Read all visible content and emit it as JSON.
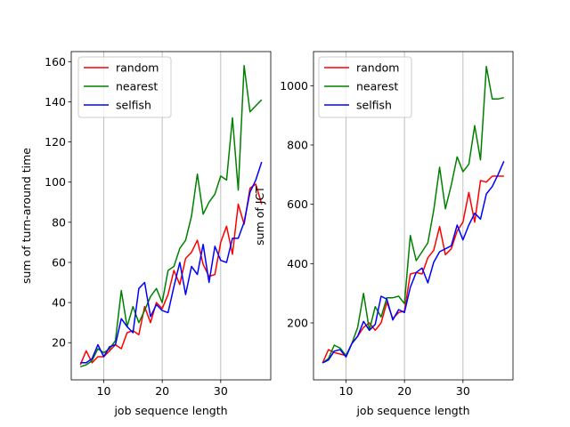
{
  "chart_data": [
    {
      "type": "line",
      "xlabel": "job sequence length",
      "ylabel": "sum of turn-around time",
      "xlim": [
        4.45,
        38.55
      ],
      "ylim": [
        1.5,
        165
      ],
      "xticks": [
        10,
        20,
        30
      ],
      "yticks": [
        20,
        40,
        60,
        80,
        100,
        120,
        140,
        160
      ],
      "grid": "vertical",
      "legend_position": "top-left",
      "x": [
        6,
        7,
        8,
        9,
        10,
        11,
        12,
        13,
        14,
        15,
        16,
        17,
        18,
        19,
        20,
        21,
        22,
        23,
        24,
        25,
        26,
        27,
        28,
        29,
        30,
        31,
        32,
        33,
        34,
        35,
        36,
        37
      ],
      "series": [
        {
          "name": "random",
          "color": "#ff0000",
          "values": [
            9,
            16,
            10,
            13,
            13,
            16,
            19,
            17,
            25,
            26,
            24,
            38,
            30,
            40,
            37,
            44,
            56,
            49,
            62,
            65,
            71,
            59,
            53,
            54,
            70,
            78,
            64,
            89,
            79,
            97,
            99,
            89
          ]
        },
        {
          "name": "nearest",
          "color": "#008000",
          "values": [
            8,
            9,
            11,
            17,
            15,
            17,
            21,
            46,
            28,
            38,
            30,
            36,
            43,
            47,
            40,
            56,
            58,
            67,
            71,
            83,
            104,
            84,
            90,
            94,
            103,
            101,
            132,
            96,
            158,
            135,
            138,
            141
          ]
        },
        {
          "name": "selfish",
          "color": "#0000ff",
          "values": [
            10,
            10,
            12,
            19,
            13,
            18,
            19,
            32,
            28,
            25,
            47,
            50,
            33,
            39,
            36,
            35,
            48,
            60,
            44,
            58,
            54,
            69,
            50,
            68,
            61,
            60,
            72,
            72,
            80,
            95,
            101,
            110
          ]
        }
      ]
    },
    {
      "type": "line",
      "xlabel": "job sequence length",
      "ylabel": "sum of JCT",
      "xlim": [
        4.45,
        38.55
      ],
      "ylim": [
        8,
        1115
      ],
      "xticks": [
        10,
        20,
        30
      ],
      "yticks": [
        200,
        400,
        600,
        800,
        1000
      ],
      "grid": "vertical",
      "legend_position": "top-left",
      "x": [
        6,
        7,
        8,
        9,
        10,
        11,
        12,
        13,
        14,
        15,
        16,
        17,
        18,
        19,
        20,
        21,
        22,
        23,
        24,
        25,
        26,
        27,
        28,
        29,
        30,
        31,
        32,
        33,
        34,
        35,
        36,
        37
      ],
      "series": [
        {
          "name": "random",
          "color": "#ff0000",
          "values": [
            65,
            110,
            100,
            95,
            90,
            130,
            155,
            185,
            200,
            175,
            200,
            270,
            215,
            235,
            240,
            365,
            370,
            365,
            420,
            445,
            525,
            430,
            450,
            510,
            540,
            640,
            540,
            680,
            675,
            695,
            695,
            695
          ]
        },
        {
          "name": "nearest",
          "color": "#008000",
          "values": [
            65,
            80,
            125,
            115,
            90,
            130,
            185,
            300,
            175,
            255,
            220,
            285,
            285,
            290,
            265,
            495,
            410,
            440,
            470,
            580,
            725,
            585,
            665,
            760,
            710,
            735,
            865,
            750,
            1065,
            955,
            955,
            960
          ]
        },
        {
          "name": "selfish",
          "color": "#0000ff",
          "values": [
            65,
            75,
            105,
            110,
            85,
            130,
            155,
            205,
            175,
            195,
            290,
            280,
            210,
            245,
            235,
            320,
            370,
            385,
            335,
            405,
            440,
            450,
            460,
            530,
            480,
            530,
            570,
            550,
            635,
            660,
            700,
            745
          ]
        }
      ]
    }
  ]
}
